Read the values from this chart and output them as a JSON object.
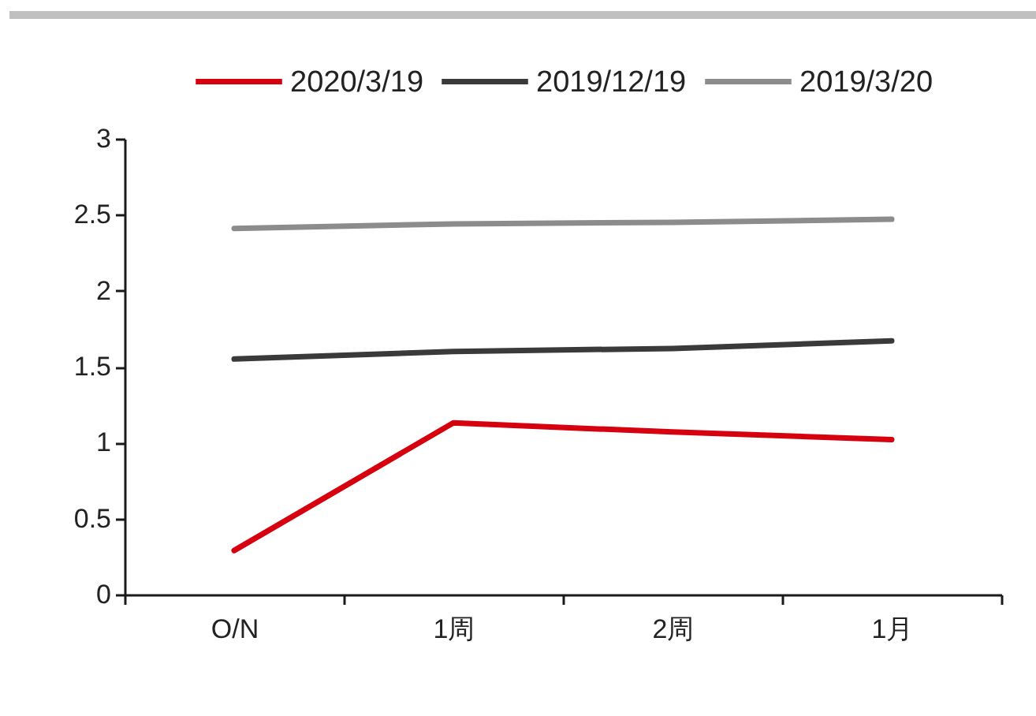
{
  "chart_data": {
    "type": "line",
    "categories": [
      "O/N",
      "1周",
      "2周",
      "1月"
    ],
    "series": [
      {
        "name": "2020/3/19",
        "color": "#d6000f",
        "values": [
          0.29,
          1.13,
          1.07,
          1.02
        ]
      },
      {
        "name": "2019/12/19",
        "color": "#3a3a3a",
        "values": [
          1.55,
          1.6,
          1.62,
          1.67
        ]
      },
      {
        "name": "2019/3/20",
        "color": "#8c8c8c",
        "values": [
          2.41,
          2.44,
          2.45,
          2.47
        ]
      }
    ],
    "ylim": [
      0,
      3
    ],
    "yticks": [
      0,
      0.5,
      1,
      1.5,
      2,
      2.5,
      3
    ],
    "grid": false,
    "legend": "top",
    "marker": "none",
    "line_style": "solid"
  }
}
